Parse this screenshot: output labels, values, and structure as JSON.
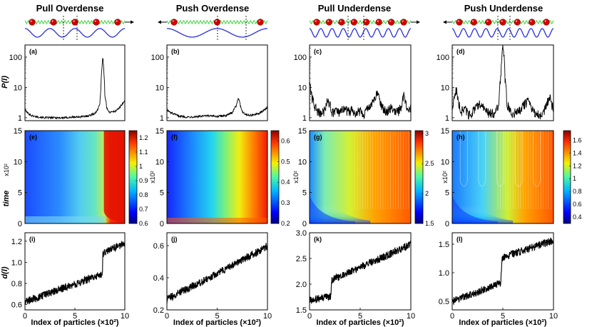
{
  "column_titles": [
    "Pull Overdense",
    "Push Overdense",
    "Pull Underdense",
    "Push Underdense"
  ],
  "colors": {
    "spring": "#3bd33b",
    "particle": "#d40000",
    "wave": "#2a2ee0",
    "curve": "#000000"
  },
  "chart_data": [
    {
      "type": "line",
      "row": "power-spectrum",
      "panel_label": "(a)",
      "ylabel": "P(l)",
      "yscale": "log",
      "ylim": [
        0.8,
        250
      ],
      "yticks": [
        1,
        10,
        100
      ],
      "ytick_labels": [
        "1",
        "10",
        "100"
      ],
      "x": [
        0,
        0.3,
        0.6,
        1,
        1.5,
        2,
        3,
        4,
        5,
        6,
        6.5,
        7,
        7.3,
        7.5,
        7.6,
        7.7,
        7.8,
        7.9,
        8,
        8.2,
        8.5,
        9,
        9.5,
        10
      ],
      "values": [
        1.8,
        1.4,
        1.2,
        1.1,
        1.05,
        1,
        1,
        1,
        1.05,
        1.1,
        1.2,
        1.4,
        1.8,
        3,
        8,
        40,
        100,
        30,
        5,
        2,
        1.5,
        1.6,
        2.2,
        3.5
      ]
    },
    {
      "type": "line",
      "row": "power-spectrum",
      "panel_label": "(b)",
      "ylabel": "",
      "yscale": "log",
      "ylim": [
        0.8,
        250
      ],
      "yticks": [
        1,
        10,
        100
      ],
      "ytick_labels": [
        "1",
        "10",
        "100"
      ],
      "x": [
        0,
        0.3,
        0.7,
        1.2,
        2,
        3,
        4,
        5,
        6,
        6.5,
        6.9,
        7.1,
        7.3,
        7.5,
        7.8,
        8.2,
        9,
        9.5,
        10
      ],
      "values": [
        1.8,
        1.5,
        1.3,
        1.15,
        1.05,
        1.1,
        1.15,
        1.1,
        1.2,
        1.5,
        2.5,
        4.5,
        2.5,
        1.6,
        1.3,
        1.2,
        1.3,
        1.6,
        2.2
      ]
    },
    {
      "type": "line",
      "row": "power-spectrum",
      "panel_label": "(c)",
      "ylabel": "",
      "yscale": "log",
      "ylim": [
        0.8,
        250
      ],
      "yticks": [
        1,
        10,
        100
      ],
      "ytick_labels": [
        "1",
        "10",
        "100"
      ],
      "x": [
        0,
        0.2,
        0.5,
        0.8,
        1,
        1.2,
        1.4,
        1.6,
        1.8,
        2.2,
        2.6,
        3,
        3.4,
        3.8,
        4.2,
        4.6,
        5,
        5.4,
        5.8,
        6.2,
        6.5,
        6.7,
        6.9,
        7.2,
        7.6,
        8,
        8.4,
        8.8,
        9.1,
        9.3,
        9.5,
        9.8,
        10
      ],
      "values": [
        14,
        5,
        2.5,
        1.6,
        1.5,
        1.4,
        1.6,
        2.5,
        4,
        1.5,
        1.7,
        1.4,
        2.2,
        1.6,
        1.8,
        1.5,
        1.8,
        1.4,
        2.2,
        3,
        4.5,
        7,
        4,
        2.2,
        1.6,
        2.2,
        1.6,
        1.7,
        2.5,
        6,
        3,
        1.6,
        2.5
      ]
    },
    {
      "type": "line",
      "row": "power-spectrum",
      "panel_label": "(d)",
      "ylabel": "",
      "yscale": "log",
      "ylim": [
        0.8,
        250
      ],
      "yticks": [
        1,
        10,
        100
      ],
      "ytick_labels": [
        "1",
        "10",
        "100"
      ],
      "x": [
        0,
        0.2,
        0.4,
        0.6,
        0.9,
        1.2,
        1.6,
        2,
        2.4,
        2.8,
        3.2,
        3.6,
        4,
        4.3,
        4.6,
        4.8,
        5,
        5.2,
        5.4,
        5.7,
        6,
        6.4,
        6.8,
        7.2,
        7.5,
        7.8,
        8.2,
        8.6,
        9,
        9.3,
        9.6,
        9.8,
        10
      ],
      "values": [
        2,
        4,
        9,
        3,
        1.6,
        2.2,
        1.3,
        1.6,
        2.2,
        3,
        1.8,
        1.5,
        1.4,
        1.6,
        3,
        20,
        200,
        20,
        3,
        1.6,
        1.4,
        1.7,
        2,
        3,
        3.5,
        2,
        1.4,
        1.3,
        1.5,
        2.5,
        5,
        3,
        2
      ]
    },
    {
      "type": "heatmap",
      "row": "time-evolution",
      "panel_label": "(e)",
      "ylabel": "time",
      "y_unit": "x10²",
      "ylim": [
        0,
        15
      ],
      "yticks": [
        0,
        5,
        10,
        15
      ],
      "ytick_labels": [
        "0",
        "5",
        "10",
        "15"
      ],
      "colorbar": {
        "min": 0.6,
        "max": 1.25,
        "ticks": [
          0.6,
          0.7,
          0.8,
          0.9,
          1,
          1.1,
          1.2
        ],
        "tick_labels": [
          "0.6",
          "0.7",
          "0.8",
          "0.9",
          "1",
          "1.1",
          "1.2"
        ]
      }
    },
    {
      "type": "heatmap",
      "row": "time-evolution",
      "panel_label": "(f)",
      "ylabel": "",
      "y_unit": "x10²",
      "ylim": [
        0,
        15
      ],
      "yticks": [
        0,
        5,
        10,
        15
      ],
      "ytick_labels": [
        "0",
        "5",
        "10",
        "15"
      ],
      "colorbar": {
        "min": 0.2,
        "max": 0.65,
        "ticks": [
          0.2,
          0.3,
          0.4,
          0.5,
          0.6
        ],
        "tick_labels": [
          "0.2",
          "0.3",
          "0.4",
          "0.5",
          "0.6"
        ]
      }
    },
    {
      "type": "heatmap",
      "row": "time-evolution",
      "panel_label": "(g)",
      "ylabel": "",
      "y_unit": "x10²",
      "ylim": [
        0,
        15
      ],
      "yticks": [
        0,
        5,
        10,
        15
      ],
      "ytick_labels": [
        "0",
        "5",
        "10",
        "15"
      ],
      "colorbar": {
        "min": 1.5,
        "max": 3.05,
        "ticks": [
          1.5,
          2,
          2.5,
          3
        ],
        "tick_labels": [
          "1.5",
          "2",
          "2.5",
          "3"
        ]
      }
    },
    {
      "type": "heatmap",
      "row": "time-evolution",
      "panel_label": "(h)",
      "ylabel": "",
      "y_unit": "x10²",
      "ylim": [
        0,
        15
      ],
      "yticks": [
        0,
        5,
        10,
        15
      ],
      "ytick_labels": [
        "0",
        "5",
        "10",
        "15"
      ],
      "colorbar": {
        "min": 0.3,
        "max": 1.75,
        "ticks": [
          0.4,
          0.6,
          0.8,
          1,
          1.2,
          1.4,
          1.6
        ],
        "tick_labels": [
          "0.4",
          "0.6",
          "0.8",
          "1",
          "1.2",
          "1.4",
          "1.6"
        ]
      }
    },
    {
      "type": "line",
      "row": "displacement",
      "panel_label": "(i)",
      "ylabel": "d(l)",
      "xlabel": "Index of particles (×10²)",
      "xlim": [
        0,
        10
      ],
      "xticks": [
        0,
        5,
        10
      ],
      "xtick_labels": [
        "0",
        "5",
        "10"
      ],
      "ylim": [
        0.55,
        1.28
      ],
      "yticks": [
        0.6,
        0.8,
        1.0,
        1.2
      ],
      "ytick_labels": [
        "0.6",
        "0.8",
        "1.0",
        "1.2"
      ],
      "x": [
        0,
        1,
        2,
        3,
        4,
        5,
        6,
        7,
        7.6,
        7.75,
        7.8,
        8,
        9,
        10
      ],
      "values": [
        0.63,
        0.66,
        0.69,
        0.73,
        0.76,
        0.79,
        0.83,
        0.86,
        0.88,
        0.89,
        1.08,
        1.1,
        1.14,
        1.18
      ]
    },
    {
      "type": "line",
      "row": "displacement",
      "panel_label": "(j)",
      "ylabel": "",
      "xlabel": "Index of particles (×10²)",
      "xlim": [
        0,
        10
      ],
      "xticks": [
        0,
        5,
        10
      ],
      "xtick_labels": [
        "0",
        "5",
        "10"
      ],
      "ylim": [
        0.2,
        0.68
      ],
      "yticks": [
        0.2,
        0.4,
        0.6
      ],
      "ytick_labels": [
        "0.2",
        "0.4",
        "0.6"
      ],
      "x": [
        0,
        0.1,
        1,
        2,
        3,
        4,
        5,
        6,
        7,
        8,
        9,
        10
      ],
      "values": [
        0.24,
        0.27,
        0.3,
        0.33,
        0.36,
        0.39,
        0.43,
        0.46,
        0.49,
        0.53,
        0.56,
        0.6
      ]
    },
    {
      "type": "line",
      "row": "displacement",
      "panel_label": "(k)",
      "ylabel": "",
      "xlabel": "Index of particles (×10²)",
      "xlim": [
        0,
        10
      ],
      "xticks": [
        0,
        5,
        10
      ],
      "xtick_labels": [
        "0",
        "5",
        "10"
      ],
      "ylim": [
        1.5,
        3.0
      ],
      "yticks": [
        1.5,
        2.0,
        2.5,
        3.0
      ],
      "ytick_labels": [
        "1.5",
        "2.0",
        "2.5",
        "3.0"
      ],
      "x": [
        0,
        0.5,
        1,
        1.5,
        2.1,
        2.2,
        3,
        4,
        5,
        6,
        7,
        8,
        9,
        10
      ],
      "values": [
        1.68,
        1.7,
        1.72,
        1.74,
        1.76,
        2.08,
        2.15,
        2.24,
        2.33,
        2.42,
        2.5,
        2.59,
        2.68,
        2.78
      ]
    },
    {
      "type": "line",
      "row": "displacement",
      "panel_label": "(l)",
      "ylabel": "",
      "xlabel": "Index of particles (×10²)",
      "xlim": [
        0,
        10
      ],
      "xticks": [
        0,
        5,
        10
      ],
      "xtick_labels": [
        "0",
        "5",
        "10"
      ],
      "ylim": [
        0.35,
        1.7
      ],
      "yticks": [
        0.5,
        1.0,
        1.5
      ],
      "ytick_labels": [
        "0.5",
        "1.0",
        "1.5"
      ],
      "x": [
        0,
        1,
        2,
        3,
        4,
        4.8,
        4.9,
        5,
        6,
        7,
        8,
        9,
        10
      ],
      "values": [
        0.5,
        0.57,
        0.63,
        0.7,
        0.77,
        0.83,
        1.22,
        1.26,
        1.33,
        1.39,
        1.45,
        1.51,
        1.56
      ]
    }
  ]
}
